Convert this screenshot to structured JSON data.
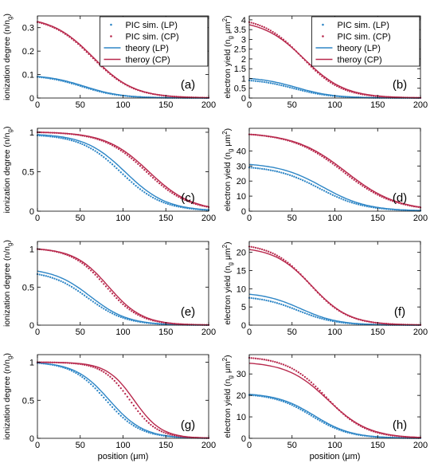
{
  "colors": {
    "lp": "#2e86c6",
    "cp": "#b8294d",
    "axis": "#000000"
  },
  "legend": {
    "items": [
      {
        "label": "PIC sim. (LP)",
        "style": "dots",
        "series": "lp"
      },
      {
        "label": "PIC sim. (CP)",
        "style": "dots",
        "series": "cp"
      },
      {
        "label": "theory (LP)",
        "style": "line",
        "series": "lp"
      },
      {
        "label": "theroy (CP)",
        "style": "line",
        "series": "cp"
      }
    ],
    "placement": "top-right",
    "panels": [
      "(a)",
      "(b)"
    ]
  },
  "axis_text": {
    "xlabel": "position (μm)",
    "ylabel_ionization": "ionization degree (n/n",
    "ylabel_ionization_sub": "g",
    "ylabel_ionization_end": ")",
    "ylabel_yield": "electron yield (n",
    "ylabel_yield_sub": "g",
    "ylabel_yield_mid": " μm",
    "ylabel_yield_sup": "2",
    "ylabel_yield_end": ")"
  },
  "chart_data": [
    {
      "panel": "(a)",
      "type": "line",
      "xlim": [
        0,
        200
      ],
      "ylim": [
        0,
        0.35
      ],
      "xticks": [
        "0",
        "50",
        "100",
        "150",
        "200"
      ],
      "yticks": [
        "0",
        "0.1",
        "0.2",
        "0.3"
      ],
      "ytick_values": [
        0,
        0.1,
        0.2,
        0.3
      ],
      "ylabel_kind": "ionization",
      "show_xlabel": false,
      "series": [
        {
          "key": "lp",
          "style": "line",
          "peak": 0.092,
          "x50": 55,
          "w": 22,
          "lo": 0
        },
        {
          "key": "lp",
          "style": "dots",
          "peak": 0.09,
          "x50": 52,
          "w": 22,
          "lo": 0
        },
        {
          "key": "cp",
          "style": "line",
          "peak": 0.326,
          "x50": 65,
          "w": 24,
          "lo": 0
        },
        {
          "key": "cp",
          "style": "dots",
          "peak": 0.324,
          "x50": 64,
          "w": 24,
          "lo": 0
        }
      ]
    },
    {
      "panel": "(b)",
      "type": "line",
      "xlim": [
        0,
        200
      ],
      "ylim": [
        0,
        4.2
      ],
      "xticks": [
        "0",
        "50",
        "100",
        "150",
        "200"
      ],
      "yticks": [
        "0",
        "0.5",
        "1",
        "1.5",
        "2",
        "2.5",
        "3",
        "3.5",
        "4"
      ],
      "ytick_values": [
        0,
        0.5,
        1,
        1.5,
        2,
        2.5,
        3,
        3.5,
        4
      ],
      "ylabel_kind": "yield",
      "show_xlabel": false,
      "series": [
        {
          "key": "lp",
          "style": "line",
          "peak": 1.0,
          "x50": 55,
          "w": 22,
          "lo": 0
        },
        {
          "key": "lp",
          "style": "dots",
          "peak": 0.9,
          "x50": 52,
          "w": 22,
          "lo": 0
        },
        {
          "key": "cp",
          "style": "line",
          "peak": 3.75,
          "x50": 64,
          "w": 24,
          "lo": 0
        },
        {
          "key": "cp",
          "style": "dots",
          "peak": 3.88,
          "x50": 62,
          "w": 23,
          "lo": 0
        }
      ]
    },
    {
      "panel": "(c)",
      "type": "line",
      "xlim": [
        0,
        200
      ],
      "ylim": [
        0,
        1.05
      ],
      "xticks": [
        "0",
        "50",
        "100",
        "150",
        "200"
      ],
      "yticks": [
        "0",
        "0.5",
        "1"
      ],
      "ytick_values": [
        0,
        0.5,
        1
      ],
      "ylabel_kind": "ionization",
      "show_xlabel": false,
      "series": [
        {
          "key": "lp",
          "style": "line",
          "peak": 0.97,
          "x50": 103,
          "w": 24,
          "lo": 0
        },
        {
          "key": "lp",
          "style": "dots",
          "peak": 0.96,
          "x50": 98,
          "w": 24,
          "lo": 0
        },
        {
          "key": "cp",
          "style": "line",
          "peak": 1.0,
          "x50": 130,
          "w": 25,
          "lo": 0
        },
        {
          "key": "cp",
          "style": "dots",
          "peak": 1.0,
          "x50": 127,
          "w": 25,
          "lo": 0
        }
      ]
    },
    {
      "panel": "(d)",
      "type": "line",
      "xlim": [
        0,
        200
      ],
      "ylim": [
        0,
        55
      ],
      "xticks": [
        "0",
        "50",
        "100",
        "150",
        "200"
      ],
      "yticks": [
        "0",
        "10",
        "20",
        "30",
        "40"
      ],
      "ytick_values": [
        0,
        10,
        20,
        30,
        40
      ],
      "ylabel_kind": "yield",
      "show_xlabel": false,
      "series": [
        {
          "key": "lp",
          "style": "line",
          "peak": 31,
          "x50": 86,
          "w": 26,
          "lo": 0
        },
        {
          "key": "lp",
          "style": "dots",
          "peak": 29,
          "x50": 82,
          "w": 26,
          "lo": 0
        },
        {
          "key": "cp",
          "style": "line",
          "peak": 51,
          "x50": 113,
          "w": 30,
          "lo": 0
        },
        {
          "key": "cp",
          "style": "dots",
          "peak": 51,
          "x50": 110,
          "w": 30,
          "lo": 0
        }
      ]
    },
    {
      "panel": "(e)",
      "type": "line",
      "xlim": [
        0,
        200
      ],
      "ylim": [
        0,
        1.1
      ],
      "xticks": [
        "0",
        "50",
        "100",
        "150",
        "200"
      ],
      "yticks": [
        "0",
        "0.5",
        "1"
      ],
      "ytick_values": [
        0,
        0.5,
        1
      ],
      "ylabel_kind": "ionization",
      "show_xlabel": false,
      "series": [
        {
          "key": "lp",
          "style": "line",
          "peak": 0.71,
          "x50": 62,
          "w": 22,
          "lo": 0
        },
        {
          "key": "lp",
          "style": "dots",
          "peak": 0.67,
          "x50": 59,
          "w": 22,
          "lo": 0
        },
        {
          "key": "cp",
          "style": "line",
          "peak": 1.0,
          "x50": 83,
          "w": 20,
          "lo": 0
        },
        {
          "key": "cp",
          "style": "dots",
          "peak": 1.0,
          "x50": 80,
          "w": 20,
          "lo": 0
        }
      ]
    },
    {
      "panel": "(f)",
      "type": "line",
      "xlim": [
        0,
        200
      ],
      "ylim": [
        0,
        23
      ],
      "xticks": [
        "0",
        "50",
        "100",
        "150",
        "200"
      ],
      "yticks": [
        "0",
        "5",
        "10",
        "15",
        "20"
      ],
      "ytick_values": [
        0,
        5,
        10,
        15,
        20
      ],
      "ylabel_kind": "yield",
      "show_xlabel": false,
      "series": [
        {
          "key": "lp",
          "style": "line",
          "peak": 8.5,
          "x50": 60,
          "w": 22,
          "lo": 0
        },
        {
          "key": "lp",
          "style": "dots",
          "peak": 7.5,
          "x50": 57,
          "w": 22,
          "lo": 0
        },
        {
          "key": "cp",
          "style": "line",
          "peak": 20.8,
          "x50": 73,
          "w": 22,
          "lo": 0
        },
        {
          "key": "cp",
          "style": "dots",
          "peak": 21.6,
          "x50": 71,
          "w": 22,
          "lo": 0
        }
      ]
    },
    {
      "panel": "(g)",
      "type": "line",
      "xlim": [
        0,
        200
      ],
      "ylim": [
        0,
        1.1
      ],
      "xticks": [
        "0",
        "50",
        "100",
        "150",
        "200"
      ],
      "yticks": [
        "0",
        "0.5",
        "1"
      ],
      "ytick_values": [
        0,
        0.5,
        1
      ],
      "ylabel_kind": "ionization",
      "show_xlabel": true,
      "series": [
        {
          "key": "lp",
          "style": "line",
          "peak": 0.99,
          "x50": 84,
          "w": 20,
          "lo": 0
        },
        {
          "key": "lp",
          "style": "dots",
          "peak": 0.99,
          "x50": 80,
          "w": 20,
          "lo": 0
        },
        {
          "key": "cp",
          "style": "line",
          "peak": 1.0,
          "x50": 113,
          "w": 16,
          "lo": 0
        },
        {
          "key": "cp",
          "style": "dots",
          "peak": 1.0,
          "x50": 108,
          "w": 16,
          "lo": 0
        }
      ]
    },
    {
      "panel": "(h)",
      "type": "line",
      "xlim": [
        0,
        200
      ],
      "ylim": [
        0,
        39
      ],
      "xticks": [
        "0",
        "50",
        "100",
        "150",
        "200"
      ],
      "yticks": [
        "0",
        "10",
        "20",
        "30"
      ],
      "ytick_values": [
        0,
        10,
        20,
        30
      ],
      "ylabel_kind": "yield",
      "show_xlabel": true,
      "series": [
        {
          "key": "lp",
          "style": "line",
          "peak": 20.5,
          "x50": 76,
          "w": 22,
          "lo": 0
        },
        {
          "key": "lp",
          "style": "dots",
          "peak": 20.2,
          "x50": 73,
          "w": 22,
          "lo": 0
        },
        {
          "key": "cp",
          "style": "line",
          "peak": 35,
          "x50": 92,
          "w": 24,
          "lo": 0
        },
        {
          "key": "cp",
          "style": "dots",
          "peak": 37.5,
          "x50": 90,
          "w": 23,
          "lo": 0
        }
      ]
    }
  ]
}
